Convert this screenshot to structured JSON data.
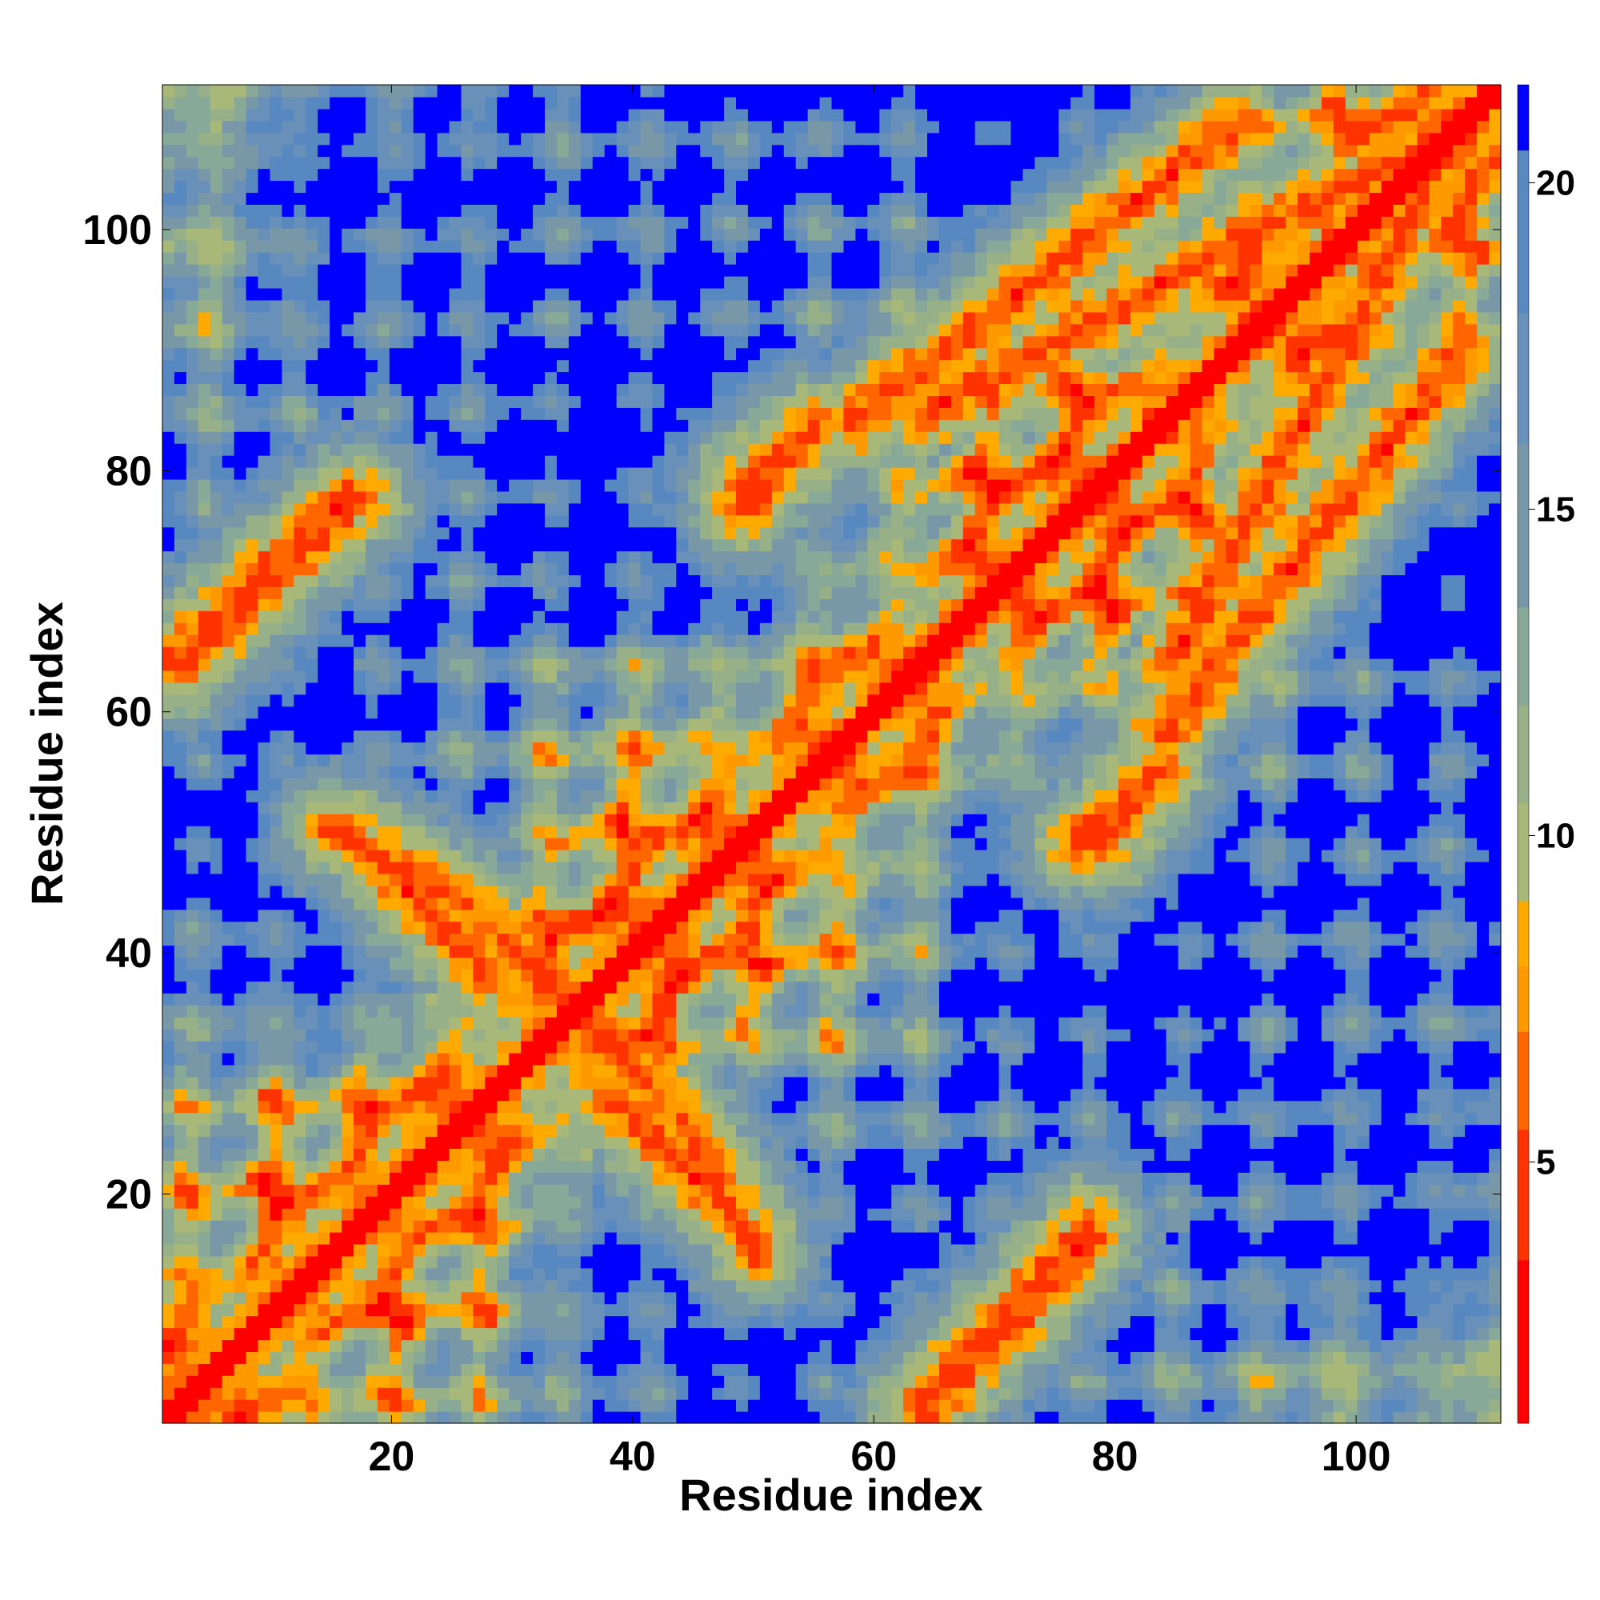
{
  "chart_data": {
    "type": "heatmap",
    "title": "",
    "xlabel": "Residue index",
    "ylabel": "Residue index",
    "n": 112,
    "xlim": [
      1,
      112
    ],
    "ylim": [
      1,
      112
    ],
    "x_ticks": [
      20,
      40,
      60,
      80,
      100
    ],
    "y_ticks": [
      20,
      40,
      60,
      80,
      100
    ],
    "colorbar": {
      "range": [
        1,
        21.5
      ],
      "ticks": [
        5,
        10,
        15,
        20
      ],
      "bins": [
        {
          "min": 1,
          "max": 3.5,
          "color": "#ff0000"
        },
        {
          "min": 3.5,
          "max": 5.5,
          "color": "#ff3300"
        },
        {
          "min": 5.5,
          "max": 7,
          "color": "#ff6600"
        },
        {
          "min": 7,
          "max": 8,
          "color": "#ff9900"
        },
        {
          "min": 8,
          "max": 9,
          "color": "#ffaa00"
        },
        {
          "min": 9,
          "max": 10.5,
          "color": "#a8b878"
        },
        {
          "min": 10.5,
          "max": 12,
          "color": "#98b088"
        },
        {
          "min": 12,
          "max": 13.5,
          "color": "#88a898"
        },
        {
          "min": 13.5,
          "max": 16,
          "color": "#7898a8"
        },
        {
          "min": 16,
          "max": 18,
          "color": "#6890b8"
        },
        {
          "min": 18,
          "max": 20.5,
          "color": "#5888c0"
        },
        {
          "min": 20.5,
          "max": 21.5,
          "color": "#0000ff"
        }
      ]
    },
    "matrix_description_contacts": [
      {
        "type": "diagonal",
        "from": 1,
        "to": 112
      },
      {
        "type": "antiparallel",
        "i_from": 28,
        "i_to": 35,
        "j_from": 42,
        "j_to": 35
      },
      {
        "type": "antiparallel",
        "i_from": 16,
        "i_to": 28,
        "j_from": 50,
        "j_to": 38
      },
      {
        "type": "antiparallel",
        "i_from": 44,
        "i_to": 50,
        "j_from": 26,
        "j_to": 15
      },
      {
        "type": "antiparallel",
        "i_from": 1,
        "i_to": 16,
        "j_from": 64,
        "j_to": 78
      },
      {
        "type": "antiparallel",
        "i_from": 64,
        "i_to": 78,
        "j_from": 2,
        "j_to": 17
      },
      {
        "type": "parallel",
        "i_from": 64,
        "i_to": 103,
        "j_from": 85,
        "j_to": 106
      },
      {
        "type": "parallel",
        "i_from": 84,
        "i_to": 109,
        "j_from": 58,
        "j_to": 90
      },
      {
        "type": "antiparallel",
        "i_from": 77,
        "i_to": 83,
        "j_from": 49,
        "j_to": 54
      },
      {
        "type": "antiparallel",
        "i_from": 49,
        "i_to": 55,
        "j_from": 79,
        "j_to": 84
      }
    ]
  }
}
